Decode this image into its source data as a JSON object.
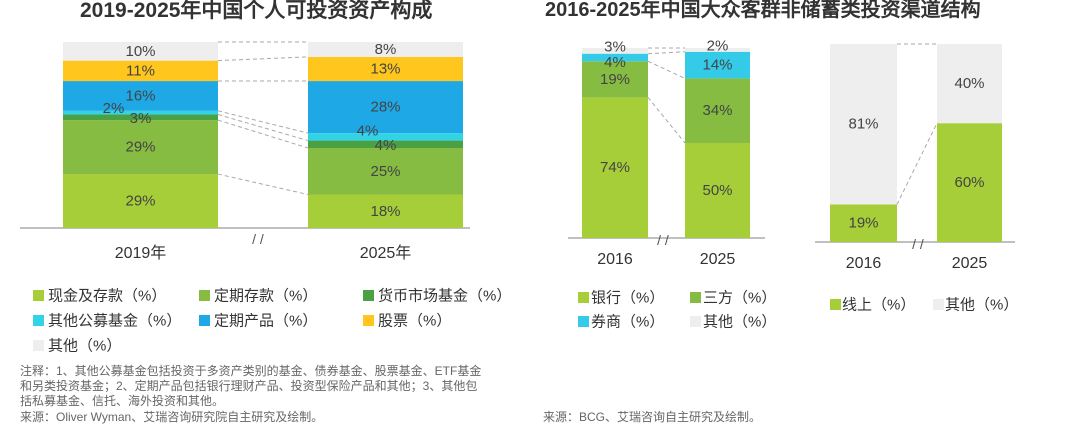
{
  "break_mark": "/ /",
  "left": {
    "notes": [
      "注释：1、其他公募基金包括投资于多资产类别的基金、债券基金、股票基金、ETF基金",
      "和另类投资基金；2、定期产品包括银行理财产品、投资型保险产品和其他；3、其他包",
      "括私募基金、信托、海外投资和其他。"
    ],
    "source": "来源：Oliver Wyman、艾瑞咨询研究院自主研究及绘制。"
  },
  "right": {
    "source": "来源：BCG、艾瑞咨询自主研究及绘制。"
  },
  "chart_data": [
    {
      "type": "bar",
      "stacked": true,
      "title": "2019-2025年中国个人可投资资产构成",
      "categories": [
        "2019年",
        "2025年"
      ],
      "series": [
        {
          "name": "现金及存款（%）",
          "values": [
            29,
            18
          ],
          "color": "#a6ce39"
        },
        {
          "name": "定期存款（%）",
          "values": [
            29,
            25
          ],
          "color": "#86bc42"
        },
        {
          "name": "货币市场基金（%）",
          "values": [
            3,
            4
          ],
          "color": "#4aa043"
        },
        {
          "name": "其他公募基金（%）",
          "values": [
            2,
            4
          ],
          "color": "#33d3e6"
        },
        {
          "name": "定期产品（%）",
          "values": [
            16,
            28
          ],
          "color": "#1ea9e6"
        },
        {
          "name": "股票（%）",
          "values": [
            11,
            13
          ],
          "color": "#ffc61e"
        },
        {
          "name": "其他（%）",
          "values": [
            10,
            8
          ],
          "color": "#eeeeee"
        }
      ],
      "ylim": [
        0,
        100
      ],
      "legend": "bottom"
    },
    {
      "type": "bar",
      "stacked": true,
      "title": "2016-2025年中国大众客群非储蓄类投资渠道结构",
      "categories": [
        "2016",
        "2025"
      ],
      "series": [
        {
          "name": "银行（%）",
          "values": [
            74,
            50
          ],
          "color": "#a6ce39"
        },
        {
          "name": "三方（%）",
          "values": [
            19,
            34
          ],
          "color": "#86bc42"
        },
        {
          "name": "券商（%）",
          "values": [
            4,
            14
          ],
          "color": "#33cbe8"
        },
        {
          "name": "其他（%）",
          "values": [
            3,
            2
          ],
          "color": "#eeeeee"
        }
      ],
      "ylim": [
        0,
        100
      ],
      "legend": "bottom"
    },
    {
      "type": "bar",
      "stacked": true,
      "categories": [
        "2016",
        "2025"
      ],
      "series": [
        {
          "name": "线上（%）",
          "values": [
            19,
            60
          ],
          "color": "#a6ce39"
        },
        {
          "name": "其他（%）",
          "values": [
            81,
            40
          ],
          "color": "#eeeeee"
        }
      ],
      "ylim": [
        0,
        100
      ],
      "legend": "bottom"
    }
  ]
}
